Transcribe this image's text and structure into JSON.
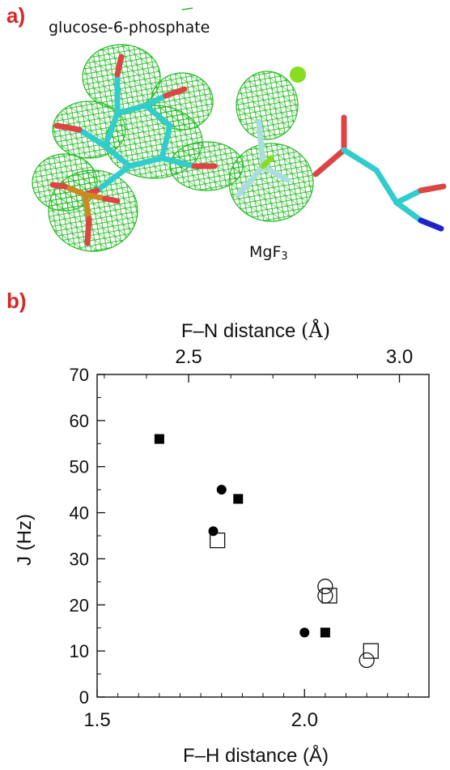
{
  "panel_a": {
    "label": "a)",
    "title": "glucose-6-phosphate",
    "mgf3_label": "MgF",
    "mgf3_sub": "3",
    "colors": {
      "mesh": "#22bb22",
      "carbon": "#33cccc",
      "oxygen": "#dd4444",
      "nitrogen": "#2222cc",
      "magnesium": "#88dd22",
      "fluorine": "#aadddd",
      "phosphorus": "#cc8822"
    }
  },
  "panel_b": {
    "label": "b)"
  },
  "chart_data": {
    "type": "scatter",
    "xlabel": "F–H distance (Å)",
    "x2label_prefix": "F–N distance ",
    "x2label_unit": "(Å)",
    "ylabel": "J (Hz)",
    "xlim": [
      1.5,
      2.3
    ],
    "x2lim": [
      2.283,
      3.07
    ],
    "ylim": [
      0,
      70
    ],
    "xticks": [
      "1.5",
      "2.0"
    ],
    "xtick_values": [
      1.5,
      2.0
    ],
    "x2ticks": [
      "2.5",
      "3.0"
    ],
    "x2tick_values": [
      2.5,
      3.0
    ],
    "yticks": [
      "0",
      "10",
      "20",
      "30",
      "40",
      "50",
      "60",
      "70"
    ],
    "ytick_values": [
      0,
      10,
      20,
      30,
      40,
      50,
      60,
      70
    ],
    "grid": false,
    "series": [
      {
        "marker": "filled-square",
        "points": [
          [
            1.65,
            56
          ],
          [
            1.84,
            43
          ],
          [
            2.05,
            14
          ]
        ]
      },
      {
        "marker": "filled-circle",
        "points": [
          [
            1.8,
            45
          ],
          [
            1.78,
            36
          ],
          [
            2.0,
            14
          ]
        ]
      },
      {
        "marker": "open-square",
        "points": [
          [
            1.79,
            34
          ],
          [
            2.06,
            22
          ],
          [
            2.16,
            10
          ]
        ]
      },
      {
        "marker": "open-circle",
        "points": [
          [
            2.05,
            24
          ],
          [
            2.05,
            22
          ],
          [
            2.15,
            8
          ]
        ]
      }
    ]
  }
}
